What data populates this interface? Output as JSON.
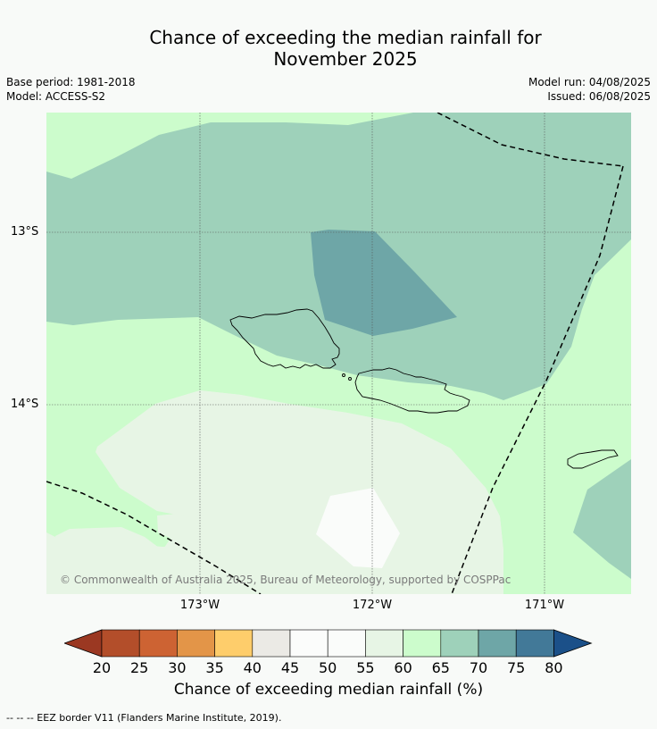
{
  "title_line1": "Chance of exceeding the median rainfall for",
  "title_line2": "November 2025",
  "base_period": "Base period: 1981-2018",
  "model": "Model: ACCESS-S2",
  "model_run": "Model run: 04/08/2025",
  "issued": "Issued: 06/08/2025",
  "lat_labels": [
    "13°S",
    "14°S"
  ],
  "lon_labels": [
    "173°W",
    "172°W",
    "171°W"
  ],
  "copyright": "© Commonwealth of Australia 2025, Bureau of Meteorology, supported by COSPPac",
  "colorbar": {
    "ticks": [
      "20",
      "25",
      "30",
      "35",
      "40",
      "45",
      "50",
      "55",
      "60",
      "65",
      "70",
      "75",
      "80"
    ],
    "colors": [
      "#9b3822",
      "#b34e2a",
      "#cd6333",
      "#e39548",
      "#fecd6b",
      "#ebeae5",
      "#fbfcfb",
      "#fafcfa",
      "#e7f5e5",
      "#ccfccc",
      "#9ed1ba",
      "#6ea6a7",
      "#427998",
      "#1b5089"
    ],
    "label": "Chance of exceeding median rainfall (%)"
  },
  "eez_note": "--  --  -- EEZ border V11 (Flanders Marine Institute, 2019).",
  "map_colors": {
    "class_60_65": "#ccfccc",
    "class_65_70": "#9ed1ba",
    "class_70_75": "#6ea6a7",
    "class_55_60": "#e7f5e5",
    "class_50_55": "#fafcfa"
  }
}
